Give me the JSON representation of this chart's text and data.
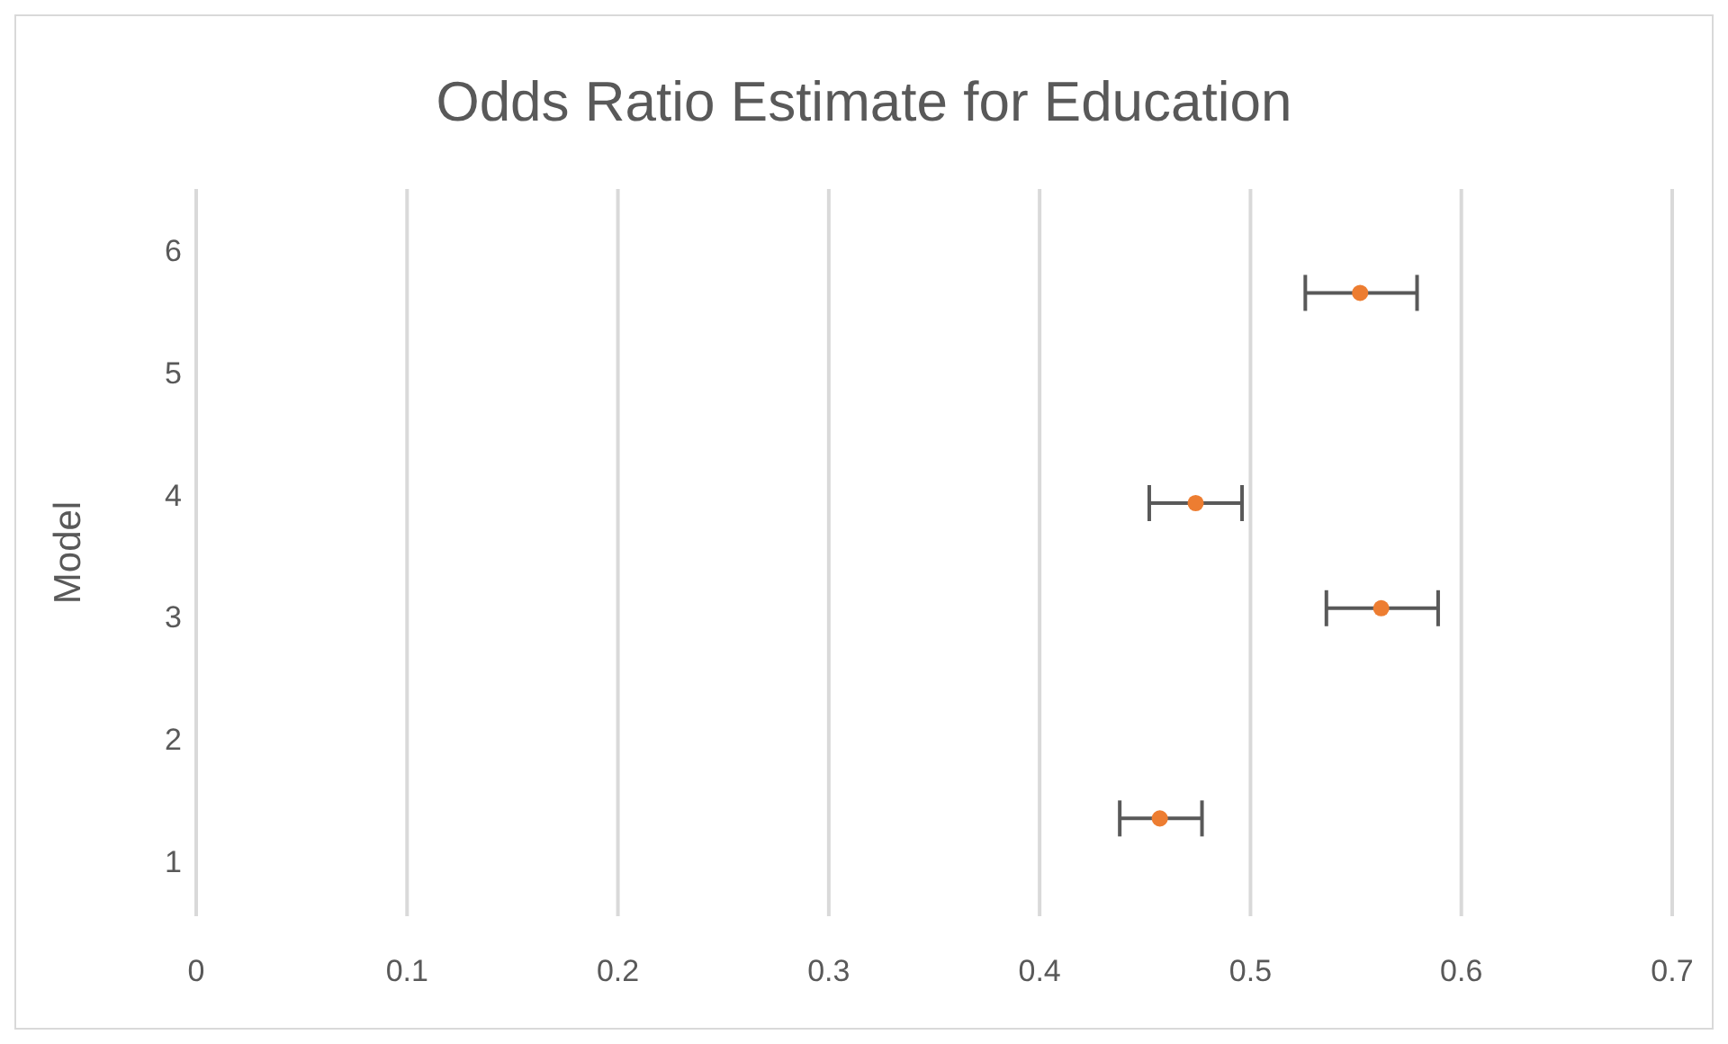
{
  "chart_data": {
    "type": "scatter",
    "title": "Odds Ratio Estimate for Education",
    "ylabel": "Model",
    "x": [
      0.457,
      0.562,
      0.474,
      0.552
    ],
    "values": [
      1.35,
      3.07,
      3.93,
      5.65
    ],
    "xerrors": [
      [
        0.438,
        0.477
      ],
      [
        0.536,
        0.589
      ],
      [
        0.452,
        0.496
      ],
      [
        0.526,
        0.579
      ]
    ],
    "color": "#ed7d31",
    "marker": "circle",
    "grid": "x",
    "legend": false,
    "xlim": [
      0,
      0.7
    ],
    "xticks": [
      0,
      0.1,
      0.2,
      0.3,
      0.4,
      0.5,
      0.6,
      0.7
    ],
    "ylim": [
      0.55,
      6.5
    ],
    "yticks": [
      1,
      2,
      3,
      4,
      5,
      6
    ]
  }
}
